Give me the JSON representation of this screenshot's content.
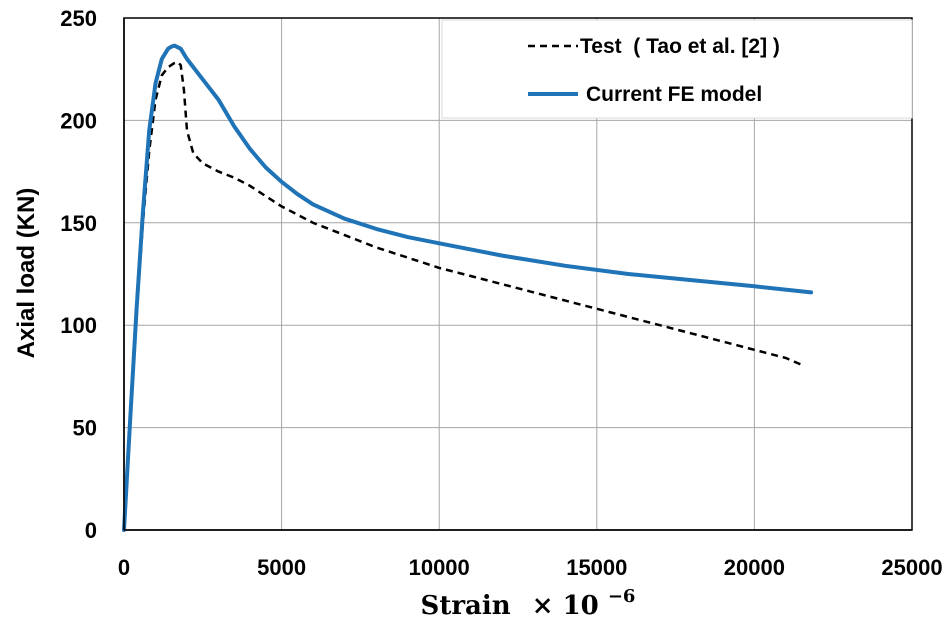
{
  "chart_data": {
    "type": "line",
    "xlabel": "Strain",
    "xlabel_multiplier": "× 10",
    "xlabel_exponent": "−6",
    "ylabel": "Axial load (KN)",
    "xlim": [
      0,
      25000
    ],
    "ylim": [
      0,
      250
    ],
    "xticks": [
      0,
      5000,
      10000,
      15000,
      20000,
      25000
    ],
    "yticks": [
      0,
      50,
      100,
      150,
      200,
      250
    ],
    "grid": true,
    "legend_position": "top-right",
    "series": [
      {
        "name": "Test  ( Tao et al. [2] )",
        "style": "dashed",
        "color": "#000000",
        "x": [
          0,
          200,
          400,
          600,
          800,
          1000,
          1200,
          1400,
          1500,
          1600,
          1700,
          1800,
          1900,
          2000,
          2200,
          2500,
          3000,
          3500,
          4000,
          4500,
          5000,
          6000,
          7000,
          8000,
          9000,
          10000,
          11000,
          12000,
          13000,
          14000,
          15000,
          16000,
          17000,
          18000,
          19000,
          20000,
          21000,
          21600
        ],
        "y": [
          0,
          55,
          105,
          150,
          185,
          210,
          222,
          226,
          227,
          228,
          228.5,
          227,
          215,
          195,
          184,
          179,
          175,
          172,
          168,
          163,
          158,
          150,
          144,
          138,
          133,
          128,
          124,
          120,
          116,
          112,
          108,
          104,
          100,
          96,
          92,
          88,
          84,
          80
        ]
      },
      {
        "name": "Current FE model",
        "style": "solid",
        "color": "#1f73b7",
        "x": [
          0,
          200,
          400,
          600,
          800,
          1000,
          1200,
          1400,
          1500,
          1600,
          1800,
          2000,
          2400,
          3000,
          3500,
          4000,
          4500,
          5000,
          5500,
          6000,
          7000,
          8000,
          9000,
          10000,
          12000,
          14000,
          16000,
          18000,
          20000,
          21800
        ],
        "y": [
          0,
          55,
          108,
          155,
          195,
          218,
          230,
          235,
          236,
          236.5,
          235,
          230,
          222,
          210,
          197,
          186,
          177,
          170,
          164,
          159,
          152,
          147,
          143,
          140,
          134,
          129,
          125,
          122,
          119,
          116
        ]
      }
    ]
  }
}
